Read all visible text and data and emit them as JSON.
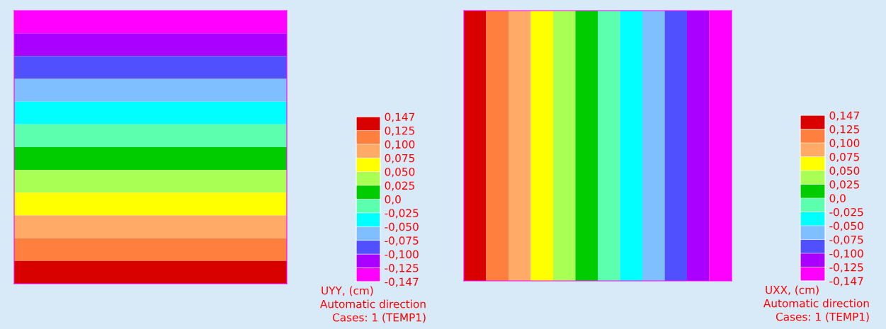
{
  "chart_data": [
    {
      "type": "heatmap",
      "clabel": "UYY, (cm)",
      "annotations": [
        "Automatic direction",
        "Cases: 1 (TEMP1)"
      ],
      "categories": [
        null
      ],
      "y_categories": [
        null,
        null,
        null,
        null,
        null,
        null,
        null,
        null,
        null,
        null,
        null,
        null
      ],
      "cells": [
        [
          -0.136
        ],
        [
          -0.1125
        ],
        [
          -0.0875
        ],
        [
          -0.0625
        ],
        [
          -0.0375
        ],
        [
          -0.0125
        ],
        [
          0.0125
        ],
        [
          0.0375
        ],
        [
          0.0625
        ],
        [
          0.0875
        ],
        [
          0.1125
        ],
        [
          0.136
        ]
      ],
      "colors": [
        "#ff00ff",
        "#aa00ff",
        "#5050ff",
        "#80bfff",
        "#00ffff",
        "#5cffad",
        "#00cc00",
        "#aaff55",
        "#ffff00",
        "#ffaa66",
        "#ff7f3f",
        "#d90000"
      ],
      "clim": [
        -0.147,
        0.147
      ],
      "cticks": [
        {
          "value": -0.147,
          "label": "-0,147"
        },
        {
          "value": -0.125,
          "label": "-0,125"
        },
        {
          "value": -0.1,
          "label": "-0,100"
        },
        {
          "value": -0.075,
          "label": "-0,075"
        },
        {
          "value": -0.05,
          "label": "-0,050"
        },
        {
          "value": -0.025,
          "label": "-0,025"
        },
        {
          "value": 0,
          "label": "0,0"
        },
        {
          "value": 0.025,
          "label": "0,025"
        },
        {
          "value": 0.05,
          "label": "0,050"
        },
        {
          "value": 0.075,
          "label": "0,075"
        },
        {
          "value": 0.1,
          "label": "0,100"
        },
        {
          "value": 0.125,
          "label": "0,125"
        },
        {
          "value": 0.147,
          "label": "0,147"
        }
      ]
    },
    {
      "type": "heatmap",
      "clabel": "UXX, (cm)",
      "annotations": [
        "Automatic direction",
        "Cases: 1 (TEMP1)"
      ],
      "categories": [
        null,
        null,
        null,
        null,
        null,
        null,
        null,
        null,
        null,
        null,
        null,
        null
      ],
      "y_categories": [
        null
      ],
      "cells": [
        [
          0.136,
          0.1125,
          0.0875,
          0.0625,
          0.0375,
          0.0125,
          -0.0125,
          -0.0375,
          -0.0625,
          -0.0875,
          -0.1125,
          -0.136
        ]
      ],
      "colors": [
        "#ff00ff",
        "#aa00ff",
        "#5050ff",
        "#80bfff",
        "#00ffff",
        "#5cffad",
        "#00cc00",
        "#aaff55",
        "#ffff00",
        "#ffaa66",
        "#ff7f3f",
        "#d90000"
      ],
      "clim": [
        -0.147,
        0.147
      ],
      "cticks": [
        {
          "value": -0.147,
          "label": "-0,147"
        },
        {
          "value": -0.125,
          "label": "-0,125"
        },
        {
          "value": -0.1,
          "label": "-0,100"
        },
        {
          "value": -0.075,
          "label": "-0,075"
        },
        {
          "value": -0.05,
          "label": "-0,050"
        },
        {
          "value": -0.025,
          "label": "-0,025"
        },
        {
          "value": 0,
          "label": "0,0"
        },
        {
          "value": 0.025,
          "label": "0,025"
        },
        {
          "value": 0.05,
          "label": "0,050"
        },
        {
          "value": 0.075,
          "label": "0,075"
        },
        {
          "value": 0.1,
          "label": "0,100"
        },
        {
          "value": 0.125,
          "label": "0,125"
        },
        {
          "value": 0.147,
          "label": "0,147"
        }
      ]
    }
  ]
}
